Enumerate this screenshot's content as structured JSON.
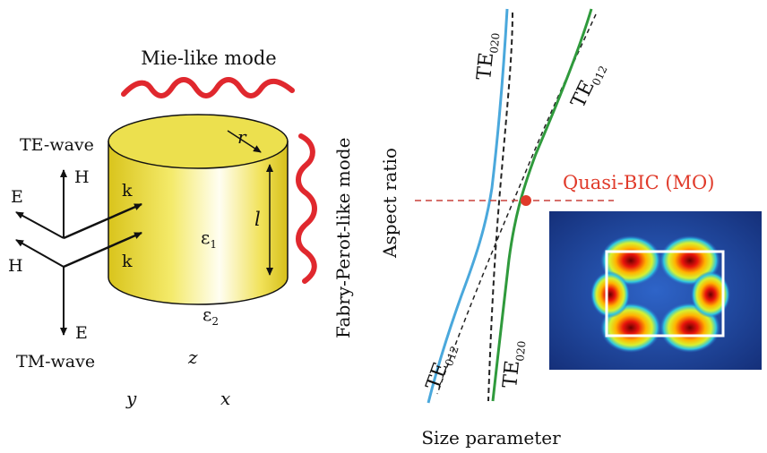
{
  "left_panel": {
    "mie_label": "Mie-like mode",
    "fp_label": "Fabry-Perot-like mode",
    "te_wave": "TE-wave",
    "tm_wave": "TM-wave",
    "h_top": "H",
    "e_left": "E",
    "h_left": "H",
    "e_bottom": "E",
    "k_top": "k",
    "k_bottom": "k",
    "r_label": "r",
    "l_label": "l",
    "eps1_base": "ε",
    "eps1_sub": "1",
    "eps2_base": "ε",
    "eps2_sub": "2",
    "z_axis": "z",
    "y_axis": "y",
    "x_axis": "x"
  },
  "right_panel": {
    "ylabel": "Aspect ratio",
    "xlabel": "Size parameter",
    "te_base": "TE",
    "curve_labels": [
      {
        "sub": "020"
      },
      {
        "sub": "012"
      },
      {
        "sub": "012"
      },
      {
        "sub": "020"
      }
    ],
    "quasi_bic_label": "Quasi-BIC (MO)"
  },
  "colors": {
    "wave_red": "#e0282e",
    "cylinder_yellow": "#f2e24a",
    "blue_curve": "#4aa8dc",
    "green_curve": "#2f9a3c",
    "bic_red": "#e03a2a",
    "field_bg": "#1d3f8c"
  }
}
